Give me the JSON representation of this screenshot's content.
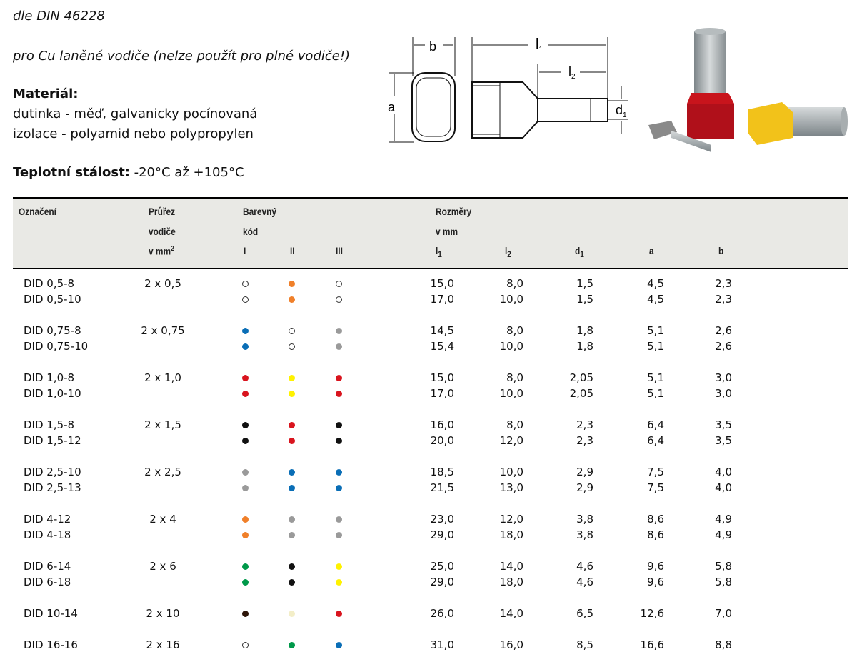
{
  "intro": {
    "standard": "dle DIN 46228",
    "usage": "pro Cu laněné vodiče (nelze použít pro plné vodiče!)",
    "material_label": "Materiál:",
    "material_1": "dutinka - měď, galvanicky pocínovaná",
    "material_2": "izolace - polyamid nebo polypropylen",
    "temp_label": "Teplotní stálost:",
    "temp_value": " -20°C až +105°C"
  },
  "diagram": {
    "b": "b",
    "a": "a",
    "l1": "l",
    "l1_sub": "1",
    "l2": "l",
    "l2_sub": "2",
    "d1": "d",
    "d1_sub": "1"
  },
  "colors": {
    "white": "#ffffff",
    "orange": "#f0802a",
    "blue": "#0a6eb6",
    "gray": "#9a9a9a",
    "red": "#d9141e",
    "yellow": "#fff200",
    "black": "#111111",
    "green": "#00994a",
    "brown": "#2e1508",
    "cream": "#f3eec8"
  },
  "table": {
    "headers": {
      "name": "Označení",
      "section_1": "Průřez",
      "section_2": "vodiče",
      "section_3": "v mm",
      "section_sup": "2",
      "color_1": "Barevný",
      "color_2": "kód",
      "col_I": "I",
      "col_II": "II",
      "col_III": "III",
      "dims_1": "Rozměry",
      "dims_2": "v mm",
      "l1": "l",
      "l1_sub": "1",
      "l2": "l",
      "l2_sub": "2",
      "d1": "d",
      "d1_sub": "1",
      "a": "a",
      "b": "b"
    },
    "groups": [
      {
        "section": "2 x 0,5",
        "rows": [
          {
            "name": "DID 0,5-8",
            "c": [
              "white",
              "orange",
              "white"
            ],
            "l1": "15,0",
            "l2": "8,0",
            "d1": "1,5",
            "a": "4,5",
            "b": "2,3"
          },
          {
            "name": "DID 0,5-10",
            "c": [
              "white",
              "orange",
              "white"
            ],
            "l1": "17,0",
            "l2": "10,0",
            "d1": "1,5",
            "a": "4,5",
            "b": "2,3"
          }
        ]
      },
      {
        "section": "2 x 0,75",
        "rows": [
          {
            "name": "DID 0,75-8",
            "c": [
              "blue",
              "white",
              "gray"
            ],
            "l1": "14,5",
            "l2": "8,0",
            "d1": "1,8",
            "a": "5,1",
            "b": "2,6"
          },
          {
            "name": "DID 0,75-10",
            "c": [
              "blue",
              "white",
              "gray"
            ],
            "l1": "15,4",
            "l2": "10,0",
            "d1": "1,8",
            "a": "5,1",
            "b": "2,6"
          }
        ]
      },
      {
        "section": "2 x 1,0",
        "rows": [
          {
            "name": "DID 1,0-8",
            "c": [
              "red",
              "yellow",
              "red"
            ],
            "l1": "15,0",
            "l2": "8,0",
            "d1": "2,05",
            "a": "5,1",
            "b": "3,0"
          },
          {
            "name": "DID 1,0-10",
            "c": [
              "red",
              "yellow",
              "red"
            ],
            "l1": "17,0",
            "l2": "10,0",
            "d1": "2,05",
            "a": "5,1",
            "b": "3,0"
          }
        ]
      },
      {
        "section": "2 x 1,5",
        "rows": [
          {
            "name": "DID 1,5-8",
            "c": [
              "black",
              "red",
              "black"
            ],
            "l1": "16,0",
            "l2": "8,0",
            "d1": "2,3",
            "a": "6,4",
            "b": "3,5"
          },
          {
            "name": "DID 1,5-12",
            "c": [
              "black",
              "red",
              "black"
            ],
            "l1": "20,0",
            "l2": "12,0",
            "d1": "2,3",
            "a": "6,4",
            "b": "3,5"
          }
        ]
      },
      {
        "section": "2 x 2,5",
        "rows": [
          {
            "name": "DID 2,5-10",
            "c": [
              "gray",
              "blue",
              "blue"
            ],
            "l1": "18,5",
            "l2": "10,0",
            "d1": "2,9",
            "a": "7,5",
            "b": "4,0"
          },
          {
            "name": "DID 2,5-13",
            "c": [
              "gray",
              "blue",
              "blue"
            ],
            "l1": "21,5",
            "l2": "13,0",
            "d1": "2,9",
            "a": "7,5",
            "b": "4,0"
          }
        ]
      },
      {
        "section": "2 x 4",
        "rows": [
          {
            "name": "DID 4-12",
            "c": [
              "orange",
              "gray",
              "gray"
            ],
            "l1": "23,0",
            "l2": "12,0",
            "d1": "3,8",
            "a": "8,6",
            "b": "4,9"
          },
          {
            "name": "DID 4-18",
            "c": [
              "orange",
              "gray",
              "gray"
            ],
            "l1": "29,0",
            "l2": "18,0",
            "d1": "3,8",
            "a": "8,6",
            "b": "4,9"
          }
        ]
      },
      {
        "section": "2 x 6",
        "rows": [
          {
            "name": "DID 6-14",
            "c": [
              "green",
              "black",
              "yellow"
            ],
            "l1": "25,0",
            "l2": "14,0",
            "d1": "4,6",
            "a": "9,6",
            "b": "5,8"
          },
          {
            "name": "DID 6-18",
            "c": [
              "green",
              "black",
              "yellow"
            ],
            "l1": "29,0",
            "l2": "18,0",
            "d1": "4,6",
            "a": "9,6",
            "b": "5,8"
          }
        ]
      },
      {
        "section": "2 x 10",
        "rows": [
          {
            "name": "DID 10-14",
            "c": [
              "brown",
              "cream",
              "red"
            ],
            "l1": "26,0",
            "l2": "14,0",
            "d1": "6,5",
            "a": "12,6",
            "b": "7,0"
          }
        ]
      },
      {
        "section": "2 x 16",
        "rows": [
          {
            "name": "DID 16-16",
            "c": [
              "white",
              "green",
              "blue"
            ],
            "l1": "31,0",
            "l2": "16,0",
            "d1": "8,5",
            "a": "16,6",
            "b": "8,8"
          }
        ]
      }
    ]
  }
}
